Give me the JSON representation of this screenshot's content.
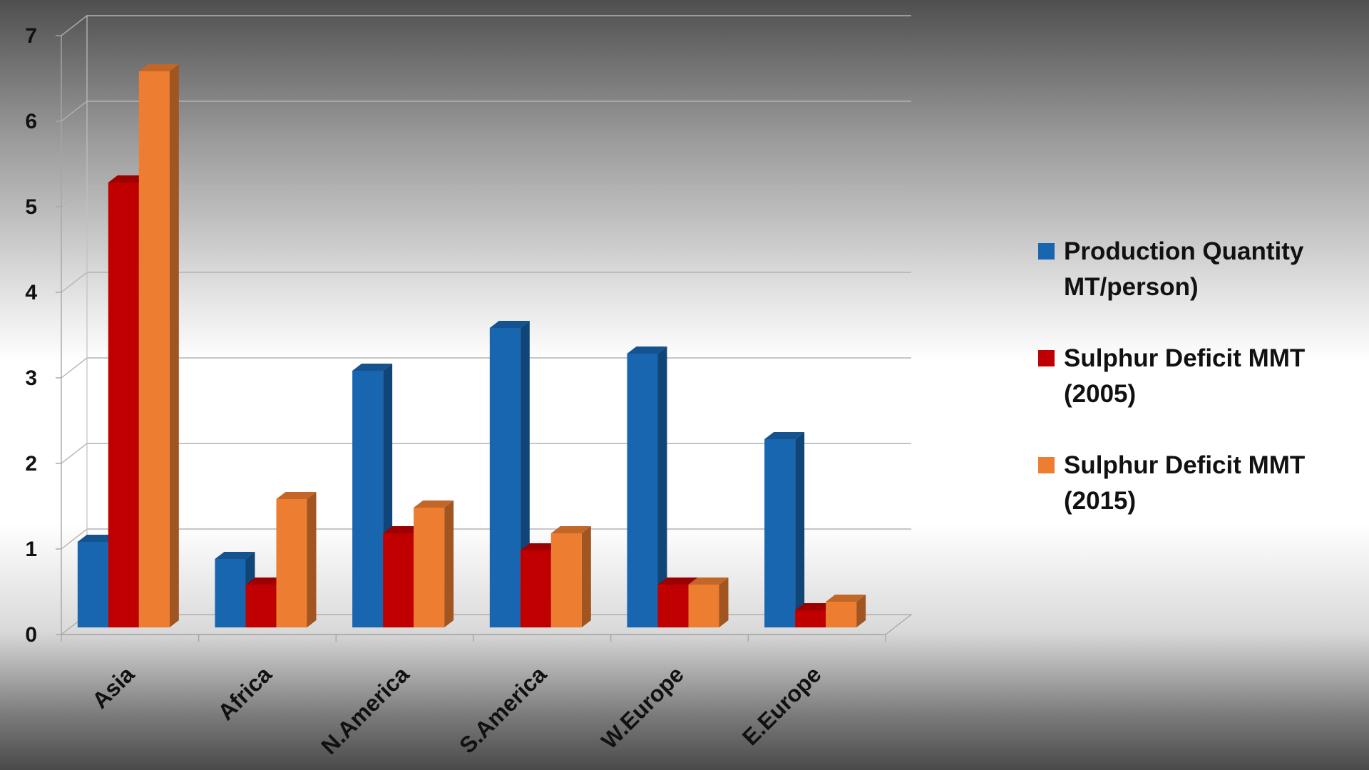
{
  "chart_data": {
    "type": "bar",
    "title": "",
    "xlabel": "",
    "ylabel": "",
    "ylim": [
      0,
      7
    ],
    "yticks": [
      "0",
      "1",
      "2",
      "3",
      "4",
      "5",
      "6",
      "7"
    ],
    "grid": true,
    "legend_position": "right",
    "categories": [
      "Asia",
      "Africa",
      "N.America",
      "S.America",
      "W.Europe",
      "E.Europe"
    ],
    "series": [
      {
        "name": "Production Quantity MT/person)",
        "label_lines": [
          "Production Quantity",
          "MT/person)"
        ],
        "color": "#1865B0",
        "values": [
          1.0,
          0.8,
          3.0,
          3.5,
          3.2,
          2.2
        ]
      },
      {
        "name": "Sulphur Deficit MMT (2005)",
        "label_lines": [
          "Sulphur Deficit MMT",
          "(2005)"
        ],
        "color": "#C00000",
        "values": [
          5.2,
          0.5,
          1.1,
          0.9,
          0.5,
          0.2
        ]
      },
      {
        "name": "Sulphur Deficit MMT (2015)",
        "label_lines": [
          "Sulphur Deficit MMT",
          "(2015)"
        ],
        "color": "#ED7D31",
        "values": [
          6.5,
          1.5,
          1.4,
          1.1,
          0.5,
          0.3
        ]
      }
    ]
  }
}
